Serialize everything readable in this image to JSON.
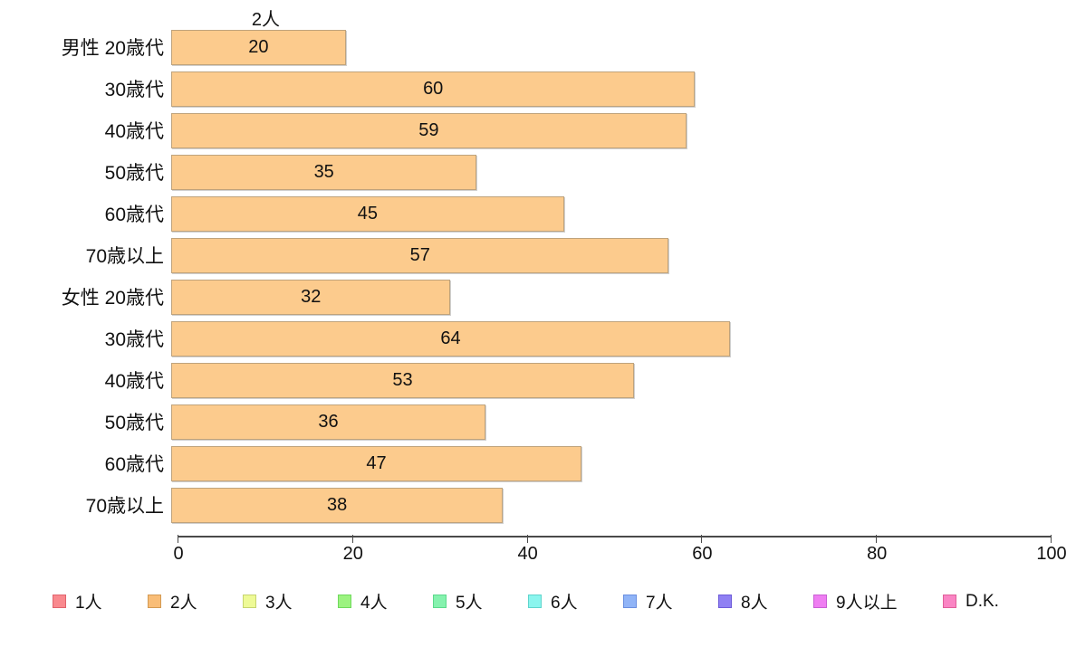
{
  "chart_data": {
    "type": "bar",
    "orientation": "horizontal",
    "title": "",
    "series_label": "2人",
    "categories": [
      "男性 20歳代",
      "30歳代",
      "40歳代",
      "50歳代",
      "60歳代",
      "70歳以上",
      "女性 20歳代",
      "30歳代",
      "40歳代",
      "50歳代",
      "60歳代",
      "70歳以上"
    ],
    "values": [
      20,
      60,
      59,
      35,
      45,
      57,
      32,
      64,
      53,
      36,
      47,
      38
    ],
    "xlabel": "",
    "ylabel": "",
    "xlim": [
      0,
      100
    ],
    "x_ticks": [
      "0",
      "20",
      "40",
      "60",
      "80",
      "100"
    ],
    "grid": false,
    "bar_fill": "#fccb8d",
    "bar_border": "#bfa37c",
    "axis_color": "#4a4a4a",
    "legend_position": "bottom",
    "legend": [
      {
        "label": "1人",
        "fill": "#f9898e",
        "border": "#e0636d"
      },
      {
        "label": "2人",
        "fill": "#f9bd77",
        "border": "#d29a53"
      },
      {
        "label": "3人",
        "fill": "#eefa96",
        "border": "#c6d470"
      },
      {
        "label": "4人",
        "fill": "#9cf380",
        "border": "#6fd95c"
      },
      {
        "label": "5人",
        "fill": "#85f2ae",
        "border": "#5cd98c"
      },
      {
        "label": "6人",
        "fill": "#8bf5ee",
        "border": "#5fd4cc"
      },
      {
        "label": "7人",
        "fill": "#90b4f7",
        "border": "#6a8fe0"
      },
      {
        "label": "8人",
        "fill": "#8f80f3",
        "border": "#6e5cd9"
      },
      {
        "label": "9人以上",
        "fill": "#ef7ef2",
        "border": "#c95fd4"
      },
      {
        "label": "D.K.",
        "fill": "#fa85c4",
        "border": "#e05f99"
      }
    ]
  }
}
